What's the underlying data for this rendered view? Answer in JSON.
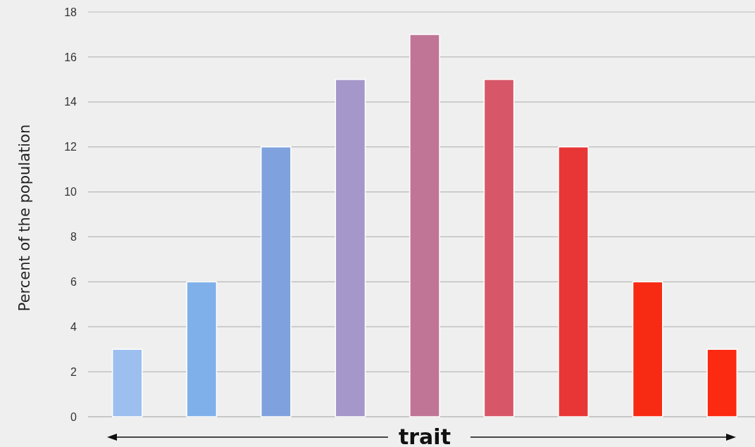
{
  "chart_data": {
    "type": "bar",
    "xlabel": "trait",
    "ylabel": "Percent of the population",
    "categories": [
      null,
      null,
      null,
      null,
      null,
      null,
      null,
      null,
      null
    ],
    "values": [
      3,
      6,
      12,
      15,
      17,
      15,
      12,
      6,
      3
    ],
    "colors": [
      "#9dbff0",
      "#80b0ea",
      "#7fa2de",
      "#a597c9",
      "#c07597",
      "#d75769",
      "#e83636",
      "#f72b14",
      "#fb2a10"
    ],
    "ylim": [
      0,
      18
    ],
    "yticks": [
      0,
      2,
      4,
      6,
      8,
      10,
      12,
      14,
      16,
      18
    ],
    "grid": "y"
  }
}
